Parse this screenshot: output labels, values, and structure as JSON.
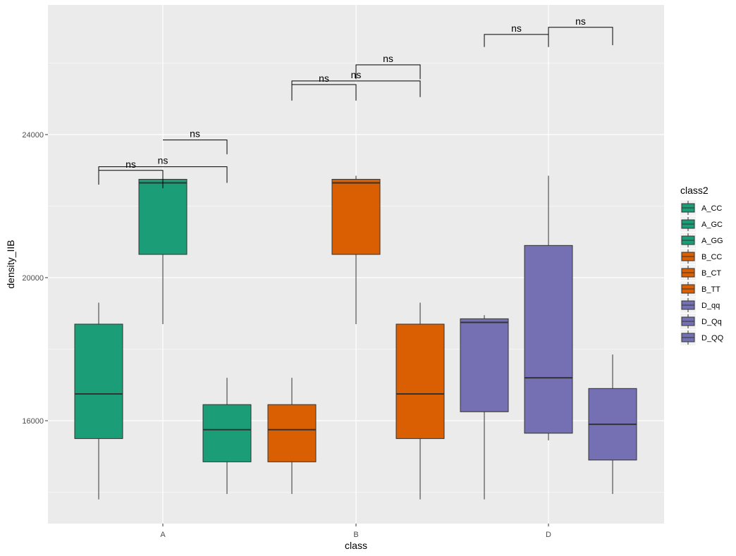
{
  "chart_data": {
    "type": "box",
    "xlabel": "class",
    "ylabel": "density_IIB",
    "categories": [
      "A",
      "B",
      "D"
    ],
    "y_ticks": [
      16000,
      20000,
      24000
    ],
    "y_tick_labels": [
      "16000",
      "20000",
      "24000"
    ],
    "ylim": [
      13000,
      27500
    ],
    "grid": true,
    "legend": {
      "title": "class2",
      "position": "right",
      "entries": [
        "A_CC",
        "A_GC",
        "A_GG",
        "B_CC",
        "B_CT",
        "B_TT",
        "D_qq",
        "D_Qq",
        "D_QQ"
      ]
    },
    "colors": {
      "A": "#1b9e77",
      "B": "#d95f02",
      "D": "#7570b3",
      "panel": "#ebebeb",
      "grid": "#ffffff"
    },
    "boxes": [
      {
        "name": "A_CC",
        "class": "A",
        "slot": 0,
        "min": 13800,
        "q1": 15500,
        "median": 16750,
        "q3": 18700,
        "max": 19300
      },
      {
        "name": "A_GC",
        "class": "A",
        "slot": 1,
        "min": 18700,
        "q1": 20650,
        "median": 22650,
        "q3": 22750,
        "max": 22750
      },
      {
        "name": "A_GG",
        "class": "A",
        "slot": 2,
        "min": 13950,
        "q1": 14850,
        "median": 15750,
        "q3": 16450,
        "max": 17200
      },
      {
        "name": "B_CC",
        "class": "B",
        "slot": 0,
        "min": 13950,
        "q1": 14850,
        "median": 15750,
        "q3": 16450,
        "max": 17200
      },
      {
        "name": "B_CT",
        "class": "B",
        "slot": 1,
        "min": 18700,
        "q1": 20650,
        "median": 22650,
        "q3": 22750,
        "max": 22850
      },
      {
        "name": "B_TT",
        "class": "B",
        "slot": 2,
        "min": 13800,
        "q1": 15500,
        "median": 16750,
        "q3": 18700,
        "max": 19300
      },
      {
        "name": "D_qq",
        "class": "D",
        "slot": 0,
        "min": 13800,
        "q1": 16250,
        "median": 18750,
        "q3": 18850,
        "max": 18950
      },
      {
        "name": "D_Qq",
        "class": "D",
        "slot": 1,
        "min": 15450,
        "q1": 15650,
        "median": 17200,
        "q3": 20900,
        "max": 22850
      },
      {
        "name": "D_QQ",
        "class": "D",
        "slot": 2,
        "min": 13950,
        "q1": 14900,
        "median": 15900,
        "q3": 16900,
        "max": 17850
      }
    ],
    "comparisons": [
      {
        "class": "A",
        "from": 0,
        "to": 1,
        "label": "ns",
        "y": 23000,
        "drop_from": 22600,
        "drop_to": 22500
      },
      {
        "class": "A",
        "from": 0,
        "to": 2,
        "label": "ns",
        "y": 23100,
        "drop_from": 22600,
        "drop_to": 22650
      },
      {
        "class": "A",
        "from": 1,
        "to": 2,
        "label": "ns",
        "y": 23850,
        "drop_from": 23850,
        "drop_to": 23450
      },
      {
        "class": "B",
        "from": 0,
        "to": 1,
        "label": "ns",
        "y": 25400,
        "drop_from": 24950,
        "drop_to": 24950
      },
      {
        "class": "B",
        "from": 0,
        "to": 2,
        "label": "ns",
        "y": 25500,
        "drop_from": 25400,
        "drop_to": 25050
      },
      {
        "class": "B",
        "from": 1,
        "to": 2,
        "label": "ns",
        "y": 25950,
        "drop_from": 25550,
        "drop_to": 25550
      },
      {
        "class": "D",
        "from": 0,
        "to": 1,
        "label": "ns",
        "y": 26800,
        "drop_from": 26450,
        "drop_to": 26450
      },
      {
        "class": "D",
        "from": 1,
        "to": 2,
        "label": "ns",
        "y": 27000,
        "drop_from": 26450,
        "drop_to": 26500
      }
    ]
  }
}
